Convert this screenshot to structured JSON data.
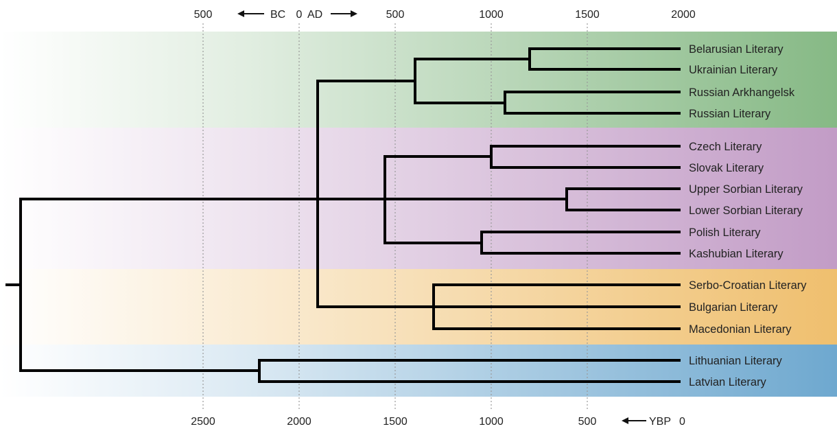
{
  "colors": {
    "band_east": "#86b985",
    "band_west": "#c29cc6",
    "band_south": "#efbf6e",
    "band_baltic": "#6ea8cf",
    "branch": "#000000",
    "grid": "#9a9a9a"
  },
  "top_axis": {
    "ticks": [
      "500",
      "0",
      "500",
      "1000",
      "1500",
      "2000"
    ],
    "bc_label": "BC",
    "ad_label": "AD"
  },
  "bottom_axis": {
    "ticks": [
      "2500",
      "2000",
      "1500",
      "1000",
      "500"
    ],
    "ybp_label": "YBP",
    "ybp_zero": "0"
  },
  "leaves": [
    "Belarusian Literary",
    "Ukrainian Literary",
    "Russian Arkhangelsk",
    "Russian Literary",
    "Czech Literary",
    "Slovak Literary",
    "Upper Sorbian Literary",
    "Lower Sorbian Literary",
    "Polish Literary",
    "Kashubian Literary",
    "Serbo-Croatian Literary",
    "Bulgarian Literary",
    "Macedonian Literary",
    "Lithuanian Literary",
    "Latvian Literary"
  ]
}
